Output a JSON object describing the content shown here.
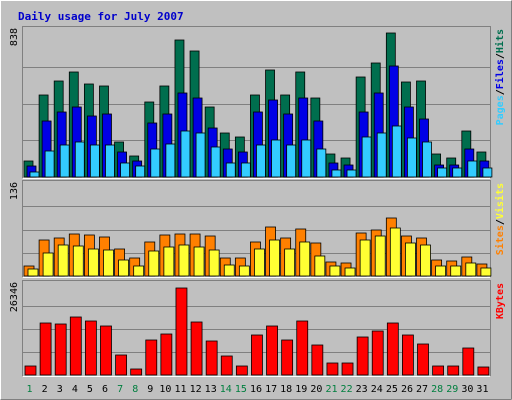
{
  "chart_data": {
    "type": "bar",
    "title": "Daily usage for July 2007",
    "colors": {
      "background": "#c0c0c0",
      "title": "#0000cc",
      "hits": "#006e4e",
      "files": "#0000e6",
      "pages": "#33ccff",
      "visits": "#ff8000",
      "sites": "#ffff33",
      "kbytes": "#ff0000",
      "weekday_label": "#000000",
      "weekend_label": "#007f3f",
      "slash": "#000000"
    },
    "days": [
      "1",
      "2",
      "3",
      "4",
      "5",
      "6",
      "7",
      "8",
      "9",
      "10",
      "11",
      "12",
      "13",
      "14",
      "15",
      "16",
      "17",
      "18",
      "19",
      "20",
      "21",
      "22",
      "23",
      "24",
      "25",
      "26",
      "27",
      "28",
      "29",
      "30",
      "31"
    ],
    "weekend_days": [
      1,
      7,
      8,
      14,
      15,
      21,
      22,
      28,
      29
    ],
    "panels": [
      {
        "id": "hits-files-pages",
        "max_label": "838",
        "ymax": 838,
        "legend": [
          "Pages",
          "/",
          "Files",
          "/",
          "Hits"
        ],
        "legend_keys": [
          "pages",
          "slash",
          "files",
          "slash",
          "hits"
        ],
        "series": [
          {
            "name": "Hits",
            "key": "hits",
            "values": [
              90,
              470,
              550,
              600,
              530,
              520,
              200,
              120,
              430,
              520,
              780,
              720,
              400,
              250,
              230,
              470,
              610,
              470,
              600,
              450,
              130,
              110,
              570,
              650,
              820,
              540,
              550,
              130,
              110,
              260,
              140
            ]
          },
          {
            "name": "Files",
            "key": "files",
            "values": [
              60,
              320,
              370,
              400,
              350,
              360,
              140,
              90,
              310,
              360,
              480,
              450,
              280,
              160,
              140,
              370,
              440,
              360,
              450,
              320,
              80,
              70,
              370,
              480,
              630,
              400,
              330,
              70,
              70,
              160,
              90
            ]
          },
          {
            "name": "Pages",
            "key": "pages",
            "values": [
              30,
              150,
              180,
              200,
              180,
              180,
              80,
              60,
              160,
              190,
              260,
              250,
              170,
              80,
              80,
              180,
              210,
              180,
              210,
              160,
              40,
              40,
              230,
              250,
              290,
              220,
              200,
              50,
              50,
              90,
              50
            ]
          }
        ]
      },
      {
        "id": "visits-sites",
        "max_label": "136",
        "ymax": 136,
        "legend": [
          "Sites",
          "/",
          "Visits"
        ],
        "legend_keys": [
          "visits",
          "slash",
          "sites"
        ],
        "series": [
          {
            "name": "Visits",
            "key": "visits",
            "values": [
              15,
              53,
              56,
              62,
              60,
              57,
              40,
              26,
              50,
              60,
              62,
              62,
              59,
              26,
              27,
              49,
              71,
              56,
              68,
              48,
              21,
              19,
              63,
              67,
              85,
              59,
              55,
              23,
              22,
              28,
              17
            ]
          },
          {
            "name": "Sites",
            "key": "sites",
            "values": [
              10,
              33,
              45,
              44,
              40,
              38,
              24,
              14,
              37,
              43,
              45,
              42,
              38,
              16,
              14,
              40,
              53,
              40,
              50,
              29,
              14,
              12,
              53,
              58,
              70,
              48,
              45,
              15,
              15,
              19,
              11
            ]
          }
        ]
      },
      {
        "id": "kbytes",
        "max_label": "26346",
        "ymax": 26346,
        "legend": [
          "KBytes"
        ],
        "legend_keys": [
          "kbytes"
        ],
        "series": [
          {
            "name": "KBytes",
            "key": "kbytes",
            "values": [
              2500,
              14800,
              14500,
              16500,
              15600,
              14100,
              5800,
              1600,
              10000,
              11800,
              24800,
              15200,
              9600,
              5500,
              2500,
              11500,
              14100,
              10000,
              15600,
              8500,
              3400,
              3400,
              10800,
              12500,
              14800,
              11500,
              8900,
              2500,
              2500,
              7600,
              2300
            ]
          }
        ]
      }
    ]
  }
}
